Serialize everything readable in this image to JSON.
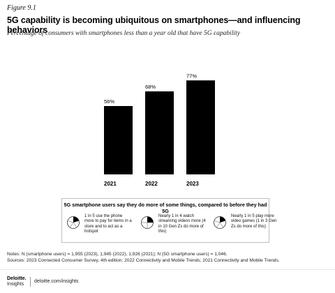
{
  "figure_label": "Figure 9.1",
  "title": "5G capability is becoming ubiquitous on smartphones—and influencing behaviors",
  "subtitle": "Percentage of consumers with smartphones less than a year old that have 5G capability",
  "chart_data": {
    "type": "bar",
    "categories": [
      "2021",
      "2022",
      "2023"
    ],
    "values": [
      56,
      68,
      77
    ],
    "value_labels": [
      "56%",
      "68%",
      "77%"
    ],
    "unit": "%",
    "ylim": [
      0,
      100
    ],
    "bar_color": "#000000",
    "grid": false,
    "legend": "none",
    "xlabel": "",
    "ylabel": ""
  },
  "callout": {
    "title": "5G smartphone users say they do more of some things, compared to before they had 5G",
    "items": [
      {
        "icon": "pie-fraction-icon",
        "fraction": 0.2,
        "text": "1 in 5 use the phone more to pay for items in a store and to act as a hotspot"
      },
      {
        "icon": "pie-fraction-icon",
        "fraction": 0.25,
        "text": "Nearly 1 in 4 watch streaming videos more (4 in 10 Gen Zs do more of this)"
      },
      {
        "icon": "pie-fraction-icon",
        "fraction": 0.2,
        "text": "Nearly 1 in 5 play more video games (1 in 3 Gen Zs do more of this)"
      }
    ]
  },
  "notes": {
    "line1": "Notes: N (smartphone users) = 1,955 (2023), 1,945 (2022), 1,926 (2021); N (5G smartphone users) = 1,046.",
    "line2": "Sources: 2023 Connected Consumer Survey, 4th edition; 2022 Connectivity and Mobile Trends; 2021 Connectivity and Mobile Trends."
  },
  "footer": {
    "brand": "Deloitte.",
    "brand_sub": "Insights",
    "url": "deloitte.com/insights"
  }
}
